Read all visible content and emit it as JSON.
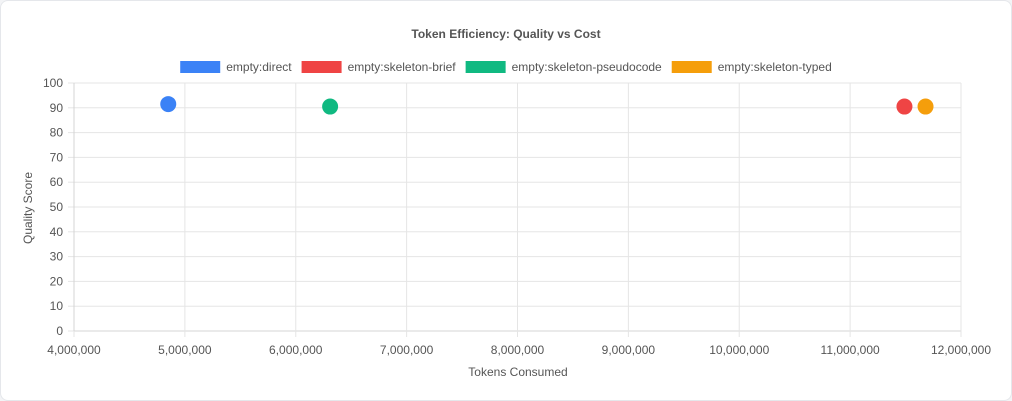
{
  "chart_data": {
    "type": "scatter",
    "title": "Token Efficiency: Quality vs Cost",
    "xlabel": "Tokens Consumed",
    "ylabel": "Quality Score",
    "xlim": [
      4000000,
      12000000
    ],
    "ylim": [
      0,
      100
    ],
    "x_ticks": [
      4000000,
      5000000,
      6000000,
      7000000,
      8000000,
      9000000,
      10000000,
      11000000,
      12000000
    ],
    "x_tick_labels": [
      "4,000,000",
      "5,000,000",
      "6,000,000",
      "7,000,000",
      "8,000,000",
      "9,000,000",
      "10,000,000",
      "11,000,000",
      "12,000,000"
    ],
    "y_ticks": [
      0,
      10,
      20,
      30,
      40,
      50,
      60,
      70,
      80,
      90,
      100
    ],
    "y_tick_labels": [
      "0",
      "10",
      "20",
      "30",
      "40",
      "50",
      "60",
      "70",
      "80",
      "90",
      "100"
    ],
    "grid": true,
    "legend_position": "top",
    "series": [
      {
        "name": "empty:direct",
        "color": "#3b82f6",
        "points": [
          {
            "x": 4850000,
            "y": 91.5
          }
        ]
      },
      {
        "name": "empty:skeleton-brief",
        "color": "#ef4444",
        "points": [
          {
            "x": 11490000,
            "y": 90.5
          }
        ]
      },
      {
        "name": "empty:skeleton-pseudocode",
        "color": "#10b981",
        "points": [
          {
            "x": 6310000,
            "y": 90.5
          }
        ]
      },
      {
        "name": "empty:skeleton-typed",
        "color": "#f59e0b",
        "points": [
          {
            "x": 11680000,
            "y": 90.5
          }
        ]
      }
    ]
  }
}
